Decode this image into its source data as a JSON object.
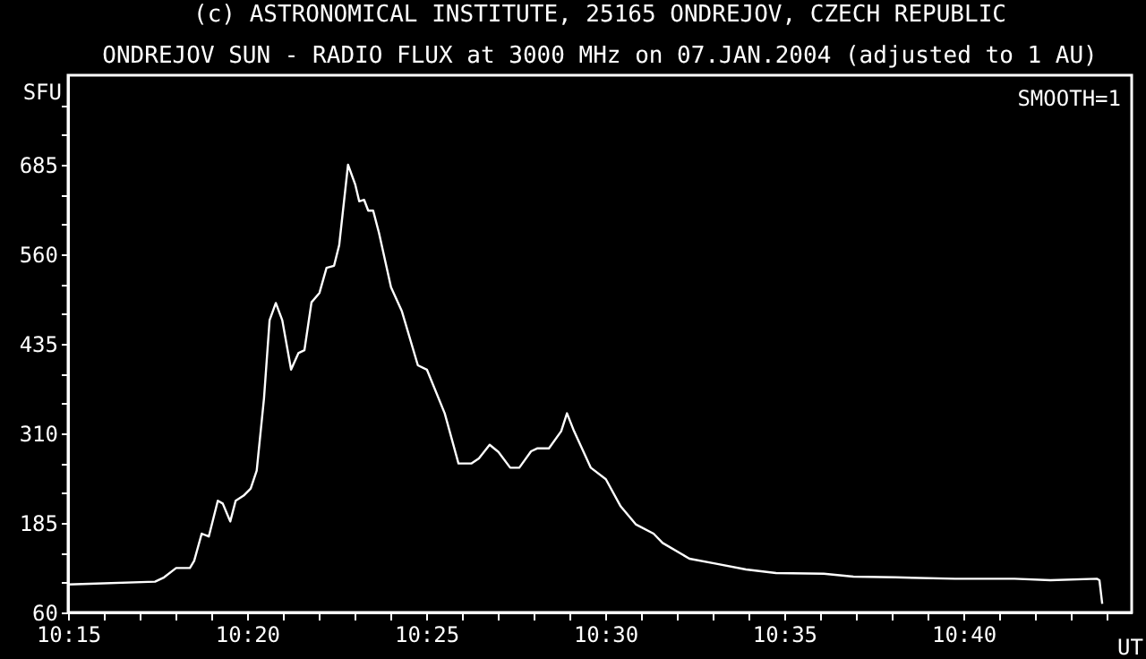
{
  "chart_data": {
    "type": "line",
    "title": "(c) ASTRONOMICAL INSTITUTE, 25165 ONDREJOV, CZECH REPUBLIC",
    "subtitle": "ONDREJOV SUN - RADIO FLUX at 3000 MHz on 07.JAN.2004 (adjusted to 1 AU)",
    "ylabel": "SFU",
    "xlabel": "UT",
    "annotations": [
      "SMOOTH=1"
    ],
    "x": [
      10.25,
      10.26,
      10.2905,
      10.2947,
      10.3003,
      10.3067,
      10.3087,
      10.3122,
      10.3155,
      10.3197,
      10.322,
      10.3255,
      10.328,
      10.3317,
      10.335,
      10.3378,
      10.3412,
      10.3438,
      10.3467,
      10.3497,
      10.3538,
      10.3572,
      10.36,
      10.3633,
      10.367,
      10.3703,
      10.3738,
      10.3762,
      10.3803,
      10.3837,
      10.3855,
      10.3878,
      10.3897,
      10.392,
      10.3947,
      10.4003,
      10.4053,
      10.4128,
      10.417,
      10.4253,
      10.4317,
      10.4378,
      10.4412,
      10.4462,
      10.4503,
      10.4558,
      10.46,
      10.4655,
      10.4683,
      10.4738,
      10.4795,
      10.4822,
      10.4855,
      10.4933,
      10.5003,
      10.5072,
      10.5142,
      10.5225,
      10.5267,
      10.5392,
      10.5517,
      10.5655,
      10.5795,
      10.6017,
      10.6155,
      10.635,
      10.6628,
      10.6905,
      10.7072,
      10.7288,
      10.73,
      10.7313
    ],
    "series": [
      {
        "color": "#ffffff",
        "values": [
          99,
          100,
          103,
          109,
          122,
          122,
          132,
          170,
          166,
          216,
          212,
          187,
          216,
          223,
          233,
          258,
          359,
          468,
          492,
          468,
          399,
          422,
          426,
          493,
          506,
          541,
          544,
          573,
          685,
          657,
          634,
          636,
          621,
          621,
          590,
          514,
          481,
          405,
          399,
          338,
          268,
          268,
          275,
          294,
          284,
          262,
          262,
          285,
          289,
          289,
          313,
          338,
          313,
          262,
          246,
          208,
          183,
          170,
          157,
          135,
          128,
          120,
          115,
          114,
          110,
          109,
          107,
          107,
          105,
          107,
          105,
          72
        ]
      }
    ],
    "xlim": [
      10.25,
      10.745
    ],
    "ylim": [
      60,
      810
    ],
    "xticks": [
      {
        "value": 10.25,
        "label": "10:15"
      },
      {
        "value": 10.2667,
        "label": null
      },
      {
        "value": 10.2833,
        "label": null
      },
      {
        "value": 10.3,
        "label": null
      },
      {
        "value": 10.3167,
        "label": null
      },
      {
        "value": 10.3333,
        "label": "10:20"
      },
      {
        "value": 10.35,
        "label": null
      },
      {
        "value": 10.3667,
        "label": null
      },
      {
        "value": 10.3833,
        "label": null
      },
      {
        "value": 10.4,
        "label": null
      },
      {
        "value": 10.4167,
        "label": "10:25"
      },
      {
        "value": 10.4333,
        "label": null
      },
      {
        "value": 10.45,
        "label": null
      },
      {
        "value": 10.4667,
        "label": null
      },
      {
        "value": 10.4833,
        "label": null
      },
      {
        "value": 10.5,
        "label": "10:30"
      },
      {
        "value": 10.5167,
        "label": null
      },
      {
        "value": 10.5333,
        "label": null
      },
      {
        "value": 10.55,
        "label": null
      },
      {
        "value": 10.5667,
        "label": null
      },
      {
        "value": 10.5833,
        "label": "10:35"
      },
      {
        "value": 10.6,
        "label": null
      },
      {
        "value": 10.6167,
        "label": null
      },
      {
        "value": 10.6333,
        "label": null
      },
      {
        "value": 10.65,
        "label": null
      },
      {
        "value": 10.6667,
        "label": "10:40"
      },
      {
        "value": 10.6833,
        "label": null
      },
      {
        "value": 10.7,
        "label": null
      },
      {
        "value": 10.7167,
        "label": null
      },
      {
        "value": 10.7333,
        "label": null
      }
    ],
    "yticks": [
      60,
      {
        "value": 101.67,
        "label": null
      },
      {
        "value": 143.33,
        "label": null
      },
      185,
      {
        "value": 226.67,
        "label": null
      },
      {
        "value": 268.33,
        "label": null
      },
      310,
      {
        "value": 351.67,
        "label": null
      },
      {
        "value": 393.33,
        "label": null
      },
      435,
      {
        "value": 476.67,
        "label": null
      },
      {
        "value": 518.33,
        "label": null
      },
      560,
      {
        "value": 601.67,
        "label": null
      },
      {
        "value": 643.33,
        "label": null
      },
      685,
      {
        "value": 726.67,
        "label": null
      },
      {
        "value": 768.33,
        "label": null
      }
    ],
    "grid": false,
    "marker": "none",
    "line_style": "solid"
  }
}
